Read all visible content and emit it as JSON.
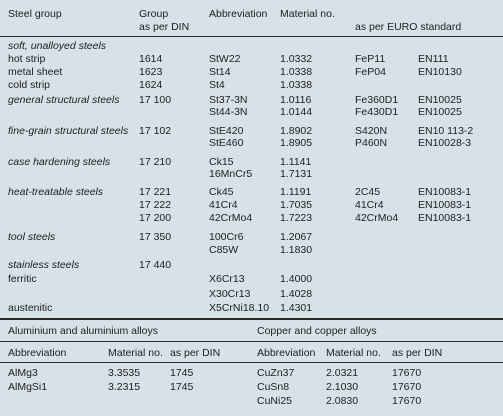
{
  "steel": {
    "header": {
      "group": "Steel group",
      "din1": "Group",
      "din2": "as per DIN",
      "abbr": "Abbreviation",
      "mat": "Material no.",
      "euro": "as per EURO standard"
    },
    "rows": [
      {
        "group": "soft, unalloyed steels",
        "italic": true
      },
      {
        "group": "hot strip",
        "din": "1614",
        "abbr": "StW22",
        "mat": "1.0332",
        "euro": "FeP11",
        "en": "EN111"
      },
      {
        "group": "metal sheet",
        "din": "1623",
        "abbr": "St14",
        "mat": "1.0338",
        "euro": "FeP04",
        "en": "EN10130"
      },
      {
        "group": "cold strip",
        "din": "1624",
        "abbr": "St4",
        "mat": "1.0338"
      },
      {
        "group": "general structural steels",
        "italic": true,
        "din": "17 100",
        "abbr": "St37-3N",
        "mat": "1.0116",
        "euro": "Fe360D1",
        "en": "EN10025"
      },
      {
        "abbr": "St44-3N",
        "mat": "1.0144",
        "euro": "Fe430D1",
        "en": "EN10025"
      },
      {
        "group": "fine-grain structural steels",
        "italic": true,
        "din": "17 102",
        "abbr": "StE420",
        "mat": "1.8902",
        "euro": "S420N",
        "en": "EN10 113-2"
      },
      {
        "abbr": "StE460",
        "mat": "1.8905",
        "euro": "P460N",
        "en": "EN10028-3"
      },
      {
        "group": "case hardening steels",
        "italic": true,
        "din": "17 210",
        "abbr": "Ck15",
        "mat": "1.1141"
      },
      {
        "abbr": "16MnCr5",
        "mat": "1.7131"
      },
      {
        "group": "heat-treatable steels",
        "italic": true,
        "din": "17 221",
        "abbr": "Ck45",
        "mat": "1.1191",
        "euro": "2C45",
        "en": "EN10083-1"
      },
      {
        "din": "17 222",
        "abbr": "41Cr4",
        "mat": "1.7035",
        "euro": "41Cr4",
        "en": "EN10083-1"
      },
      {
        "din": "17 200",
        "abbr": "42CrMo4",
        "mat": "1.7223",
        "euro": "42CrMo4",
        "en": "EN10083-1"
      },
      {
        "group": "tool steels",
        "italic": true,
        "din": "17 350",
        "abbr": "100Cr6",
        "mat": "1.2067"
      },
      {
        "abbr": "C85W",
        "mat": "1.1830"
      },
      {
        "group": "stainless steels",
        "italic": true,
        "din": "17 440"
      },
      {
        "group": "ferritic",
        "abbr": "X6Cr13",
        "mat": "1.4000"
      },
      {
        "abbr": "X30Cr13",
        "mat": "1.4028"
      },
      {
        "group": "austenitic",
        "abbr": "X5CrNi18.10",
        "mat": "1.4301"
      }
    ]
  },
  "alloys": {
    "aluminium_title": "Aluminium and aluminium alloys",
    "copper_title": "Copper and copper alloys",
    "header": [
      "Abbreviation",
      "Material no.",
      "as per DIN",
      "Abbreviation",
      "Material no.",
      "as per DIN"
    ],
    "rows": [
      {
        "al_abbr": "AlMg3",
        "al_mat": "3.3535",
        "al_din": "1745",
        "cu_abbr": "CuZn37",
        "cu_mat": "2.0321",
        "cu_din": "17670"
      },
      {
        "al_abbr": "AlMgSi1",
        "al_mat": "3.2315",
        "al_din": "1745",
        "cu_abbr": "CuSn8",
        "cu_mat": "2.1030",
        "cu_din": "17670"
      },
      {
        "cu_abbr": "CuNi25",
        "cu_mat": "2.0830",
        "cu_din": "17670"
      }
    ]
  }
}
